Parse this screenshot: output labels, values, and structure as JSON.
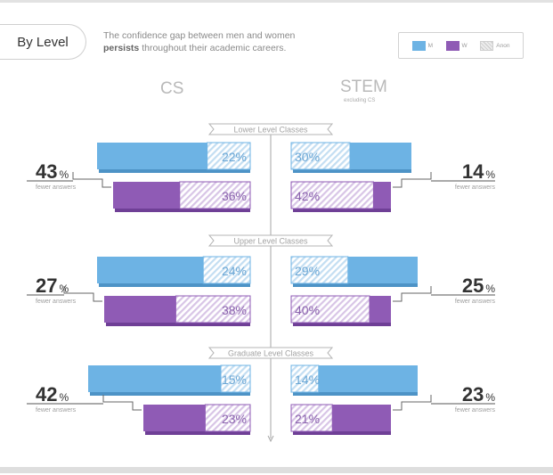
{
  "header": {
    "badge": "By Level",
    "subtitle_pre": "The confidence gap between men and women",
    "subtitle_bold": "persists",
    "subtitle_post": "throughout their academic careers."
  },
  "legend": {
    "m": "M",
    "w": "W",
    "a": "Anon"
  },
  "columns": {
    "cs": "CS",
    "stem": "STEM",
    "stem_sub": "excluding CS"
  },
  "colors": {
    "men": "#6db3e4",
    "men_dark": "#4d93c6",
    "men_anon": "#c3def2",
    "women": "#8f5bb5",
    "women_dark": "#6f3f96",
    "women_anon": "#d8c5e6",
    "text_blue": "#6aa6d4",
    "text_purple": "#8a63ad",
    "axis": "#a5a5a5",
    "banner_text": "#a3a3a3"
  },
  "gap_label_suffix": "fewer answers",
  "chart_data": {
    "type": "bar",
    "title": "By Level",
    "levels": [
      "Lower Level Classes",
      "Upper Level Classes",
      "Graduate Level Classes"
    ],
    "groups": [
      "CS",
      "STEM"
    ],
    "series": [
      {
        "name": "M",
        "anon_pct": {
          "CS": [
            22,
            24,
            15
          ],
          "STEM": [
            30,
            29,
            14
          ]
        }
      },
      {
        "name": "W",
        "anon_pct": {
          "CS": [
            36,
            38,
            23
          ],
          "STEM": [
            42,
            40,
            21
          ]
        }
      }
    ],
    "fewer_answers_pct": {
      "CS": [
        43,
        27,
        42
      ],
      "STEM": [
        14,
        25,
        23
      ]
    }
  }
}
